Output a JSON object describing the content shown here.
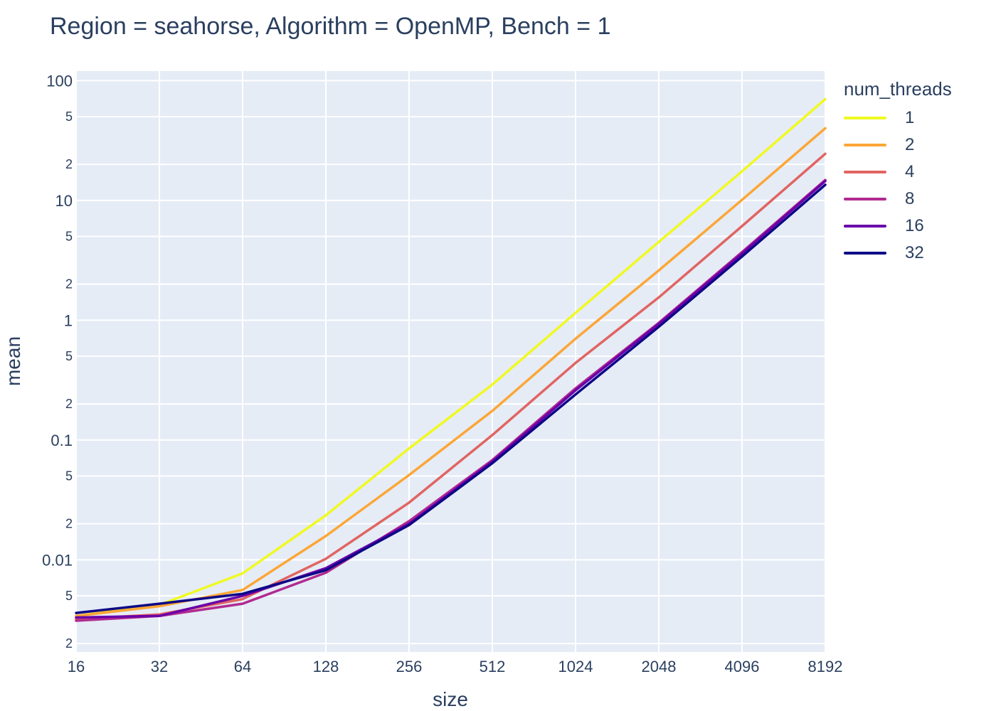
{
  "chart_data": {
    "type": "line",
    "title": "Region = seahorse, Algorithm = OpenMP, Bench = 1",
    "xlabel": "size",
    "ylabel": "mean",
    "x_scale": "log2",
    "y_scale": "log10",
    "x_ticks": [
      16,
      32,
      64,
      128,
      256,
      512,
      1024,
      2048,
      4096,
      8192
    ],
    "x_tick_labels": [
      "16",
      "32",
      "64",
      "128",
      "256",
      "512",
      "1024",
      "2048",
      "4096",
      "8192"
    ],
    "y_major_ticks": [
      {
        "value": 0.01,
        "label": "0.01"
      },
      {
        "value": 0.1,
        "label": "0.1"
      },
      {
        "value": 1,
        "label": "1"
      },
      {
        "value": 10,
        "label": "10"
      },
      {
        "value": 100,
        "label": "100"
      }
    ],
    "y_minor_ticks": [
      {
        "value": 0.002,
        "label": "2"
      },
      {
        "value": 0.005,
        "label": "5"
      },
      {
        "value": 0.02,
        "label": "2"
      },
      {
        "value": 0.05,
        "label": "5"
      },
      {
        "value": 0.2,
        "label": "2"
      },
      {
        "value": 0.5,
        "label": "5"
      },
      {
        "value": 2,
        "label": "2"
      },
      {
        "value": 5,
        "label": "5"
      },
      {
        "value": 20,
        "label": "2"
      },
      {
        "value": 50,
        "label": "5"
      }
    ],
    "xlim": [
      16,
      8192
    ],
    "ylim": [
      0.0017,
      120
    ],
    "grid": true,
    "legend_title": "num_threads",
    "legend_position": "right",
    "x": [
      16,
      32,
      64,
      128,
      256,
      512,
      1024,
      2048,
      4096,
      8192
    ],
    "series": [
      {
        "name": "1",
        "color": "#f0f921",
        "values": [
          0.0034,
          0.0042,
          0.0077,
          0.0235,
          0.085,
          0.29,
          1.15,
          4.5,
          17.5,
          70
        ]
      },
      {
        "name": "2",
        "color": "#fca636",
        "values": [
          0.0034,
          0.0041,
          0.0056,
          0.0158,
          0.051,
          0.175,
          0.7,
          2.6,
          10.1,
          40
        ]
      },
      {
        "name": "4",
        "color": "#e16462",
        "values": [
          0.0032,
          0.0035,
          0.0047,
          0.0102,
          0.03,
          0.11,
          0.44,
          1.55,
          6.1,
          24.5
        ]
      },
      {
        "name": "8",
        "color": "#b12a90",
        "values": [
          0.0031,
          0.0034,
          0.0043,
          0.0078,
          0.021,
          0.068,
          0.27,
          0.95,
          3.7,
          14.8
        ]
      },
      {
        "name": "16",
        "color": "#6a00a8",
        "values": [
          0.0033,
          0.0034,
          0.005,
          0.0085,
          0.02,
          0.066,
          0.26,
          0.93,
          3.6,
          14.5
        ]
      },
      {
        "name": "32",
        "color": "#0d0887",
        "values": [
          0.0036,
          0.0043,
          0.0052,
          0.0082,
          0.0195,
          0.064,
          0.24,
          0.88,
          3.4,
          13.5
        ]
      }
    ]
  }
}
